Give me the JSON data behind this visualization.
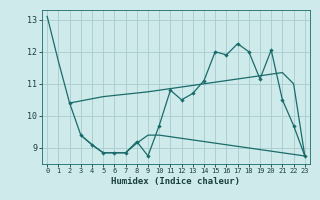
{
  "xlabel": "Humidex (Indice chaleur)",
  "background_color": "#ceeaea",
  "grid_color": "#a8cccc",
  "line_color": "#1a6b6b",
  "xlim": [
    -0.5,
    23.5
  ],
  "ylim": [
    8.5,
    13.3
  ],
  "yticks": [
    9,
    10,
    11,
    12,
    13
  ],
  "xticks": [
    0,
    1,
    2,
    3,
    4,
    5,
    6,
    7,
    8,
    9,
    10,
    11,
    12,
    13,
    14,
    15,
    16,
    17,
    18,
    19,
    20,
    21,
    22,
    23
  ],
  "series": [
    {
      "x": [
        0,
        1,
        2
      ],
      "y": [
        13.1,
        11.7,
        10.4
      ],
      "marker": false
    },
    {
      "x": [
        2,
        3,
        4,
        5,
        6,
        7,
        8,
        9,
        10,
        11,
        12,
        13,
        14,
        15,
        16,
        17,
        18,
        19,
        20,
        21,
        22,
        23
      ],
      "y": [
        10.4,
        9.4,
        9.1,
        8.85,
        8.85,
        8.85,
        9.2,
        8.75,
        9.7,
        10.8,
        10.5,
        10.7,
        11.1,
        12.0,
        11.9,
        12.25,
        12.0,
        11.15,
        12.05,
        10.5,
        9.7,
        8.75
      ],
      "marker": true
    },
    {
      "x": [
        2,
        5,
        9,
        10,
        11,
        12,
        13,
        14,
        15,
        16,
        17,
        18,
        19,
        20,
        21,
        22,
        23
      ],
      "y": [
        10.4,
        10.6,
        10.75,
        10.8,
        10.85,
        10.9,
        10.95,
        11.0,
        11.05,
        11.1,
        11.15,
        11.2,
        11.25,
        11.3,
        11.35,
        11.0,
        8.75
      ],
      "marker": false
    },
    {
      "x": [
        3,
        4,
        5,
        6,
        7,
        8,
        9,
        10,
        11,
        12,
        13,
        14,
        15,
        16,
        17,
        18,
        19,
        20,
        21,
        22,
        23
      ],
      "y": [
        9.4,
        9.1,
        8.85,
        8.85,
        8.85,
        9.15,
        9.4,
        9.4,
        9.35,
        9.3,
        9.25,
        9.2,
        9.15,
        9.1,
        9.05,
        9.0,
        8.95,
        8.9,
        8.85,
        8.8,
        8.75
      ],
      "marker": false
    }
  ]
}
